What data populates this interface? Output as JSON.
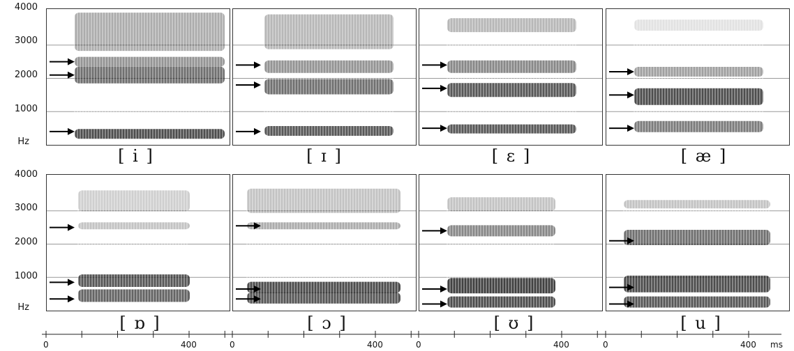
{
  "y_axis": {
    "tick_labels": [
      "4000",
      "3000",
      "2000",
      "1000"
    ],
    "unit": "Hz"
  },
  "time_axis": {
    "tick_labels": [
      "0",
      "400"
    ],
    "unit": "ms"
  },
  "panels": [
    {
      "vowel": "[ i ]",
      "formant_arrows_hz": [
        400,
        2100,
        2500
      ]
    },
    {
      "vowel": "[ ɪ ]",
      "formant_arrows_hz": [
        400,
        1800,
        2400
      ]
    },
    {
      "vowel": "[ ɛ ]",
      "formant_arrows_hz": [
        500,
        1700,
        2400
      ]
    },
    {
      "vowel": "[ æ ]",
      "formant_arrows_hz": [
        500,
        1500,
        2200
      ]
    },
    {
      "vowel": "[ ɒ ]",
      "formant_arrows_hz": [
        350,
        850,
        2500
      ]
    },
    {
      "vowel": "[ ɔ ]",
      "formant_arrows_hz": [
        350,
        650,
        2550
      ]
    },
    {
      "vowel": "[ ʊ ]",
      "formant_arrows_hz": [
        200,
        650,
        2400
      ]
    },
    {
      "vowel": "[ u ]",
      "formant_arrows_hz": [
        200,
        700,
        2100
      ]
    }
  ]
}
